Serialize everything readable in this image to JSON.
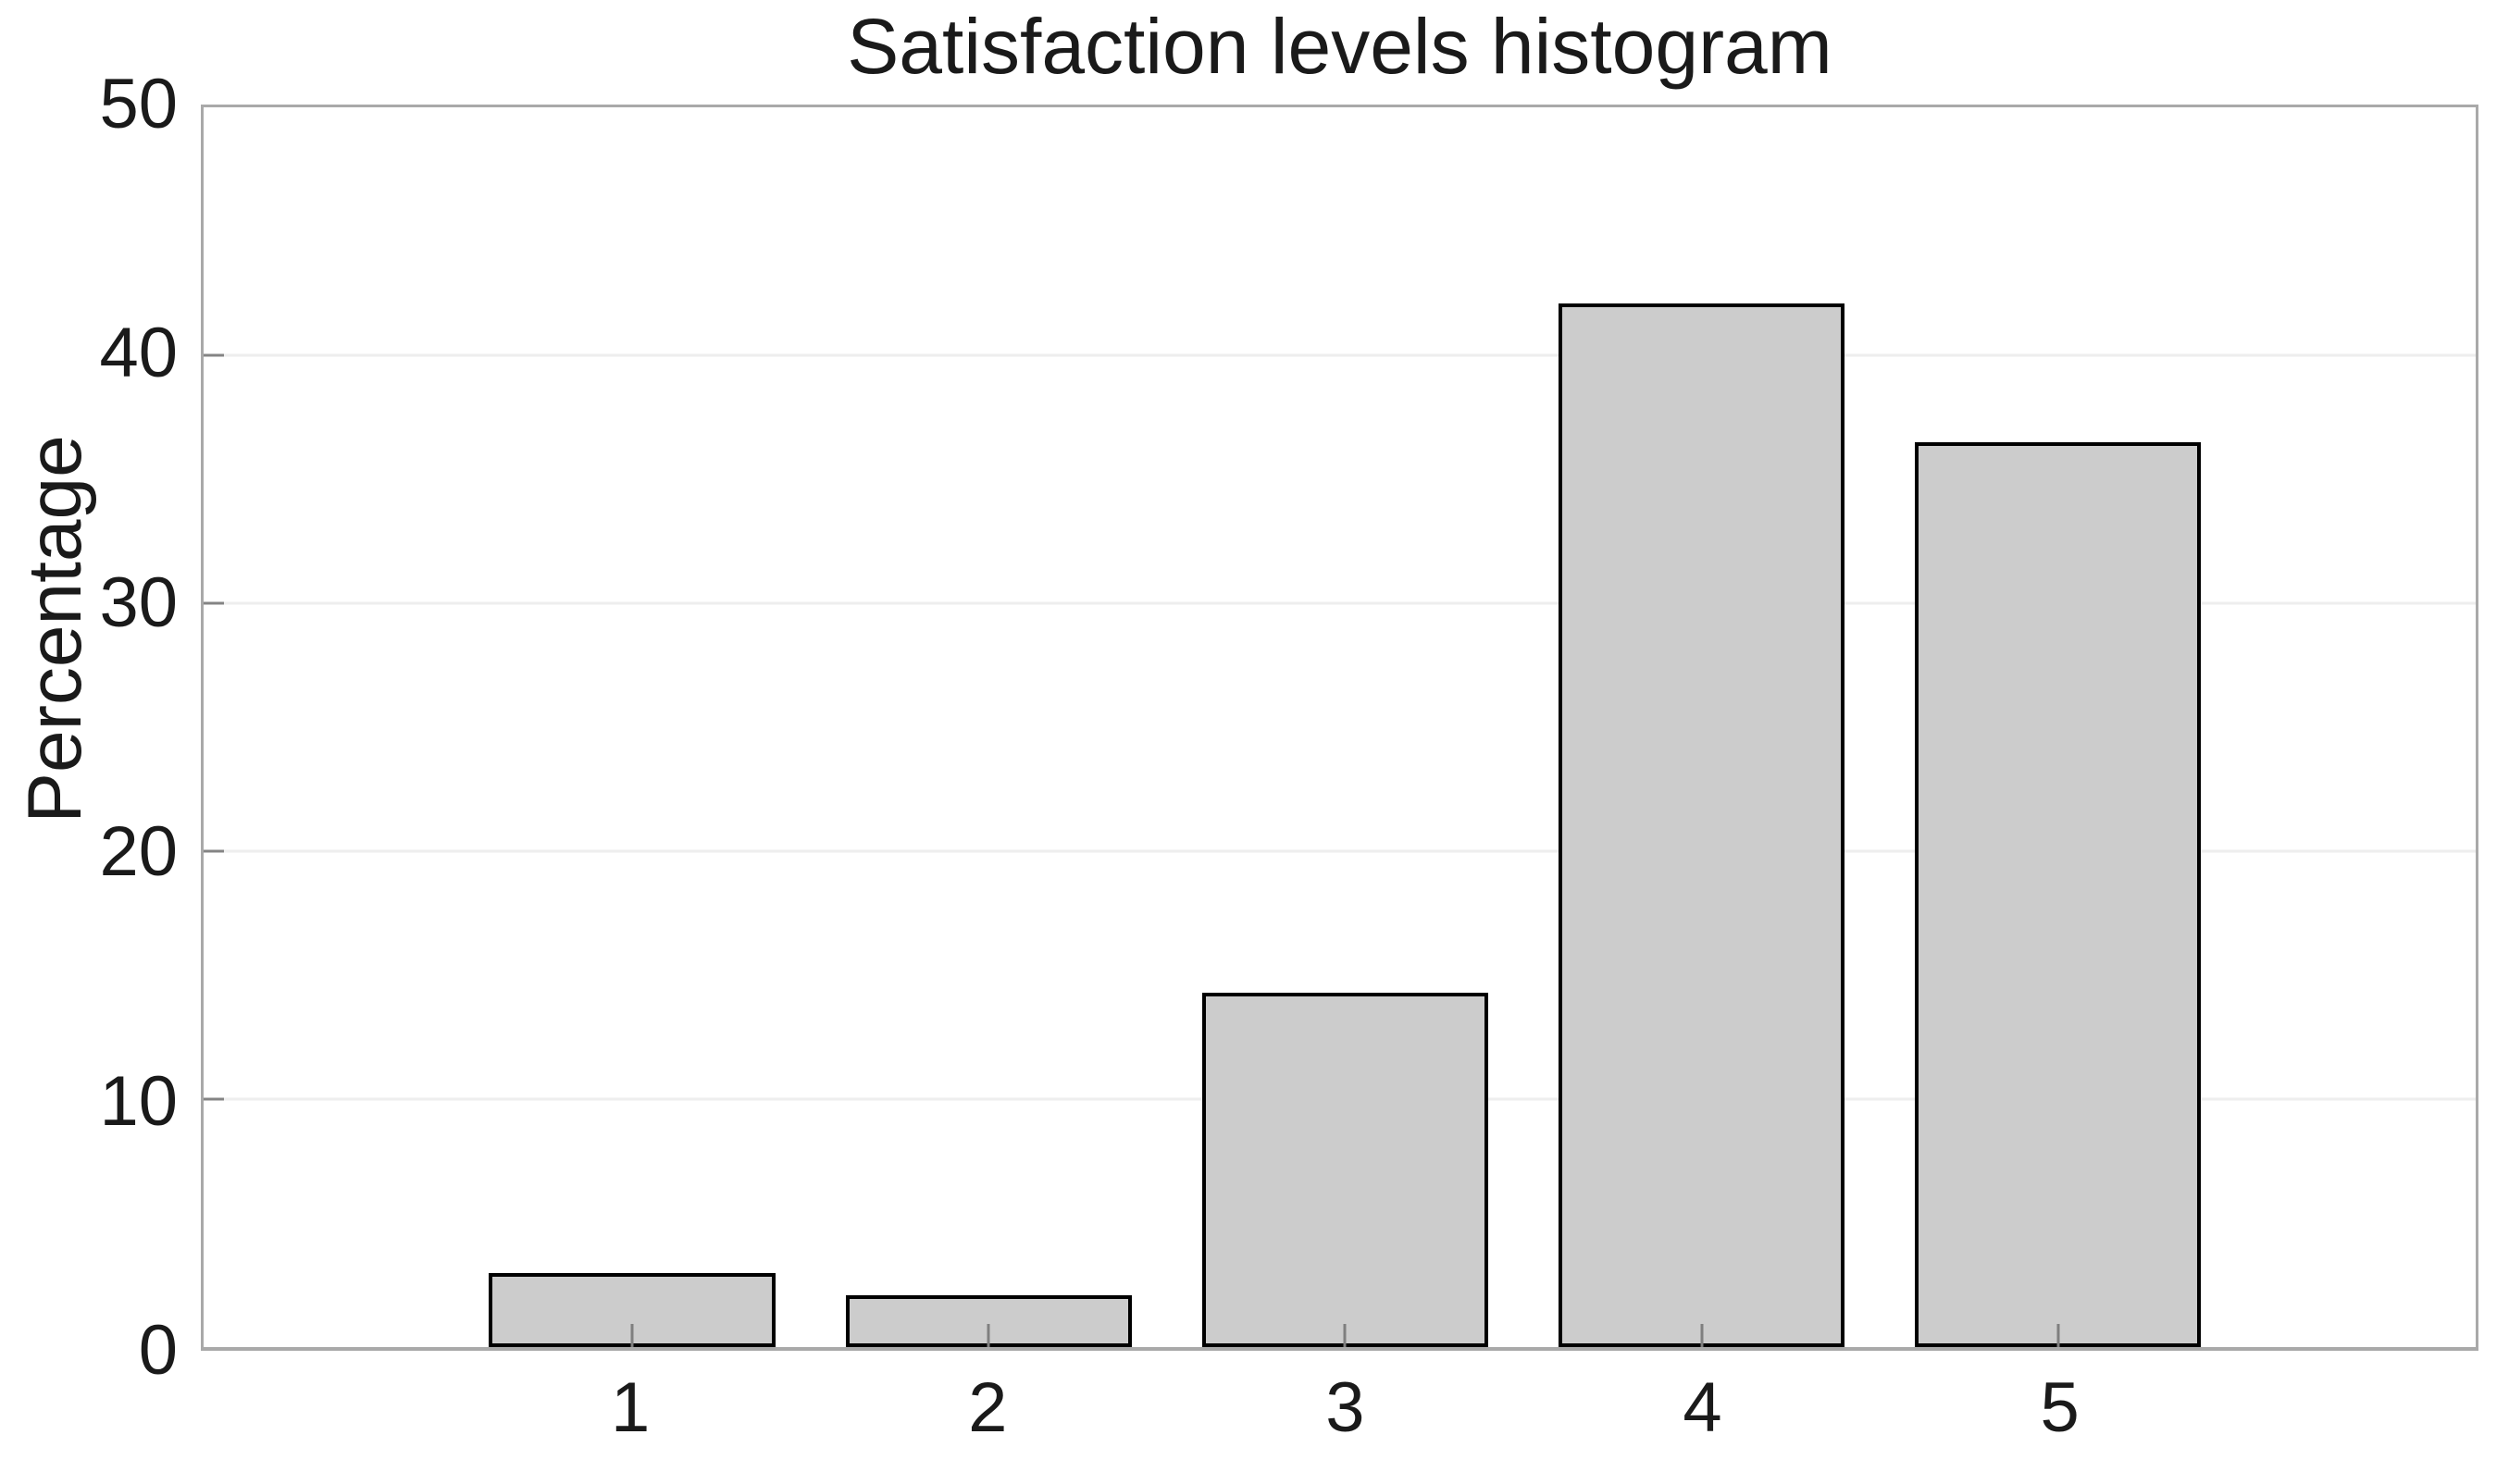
{
  "chart_data": {
    "type": "bar",
    "title": "Satisfaction levels histogram",
    "xlabel": "",
    "ylabel": "Percentage",
    "categories": [
      "1",
      "2",
      "3",
      "4",
      "5"
    ],
    "values": [
      3.0,
      2.1,
      14.3,
      42.1,
      36.5
    ],
    "ylim": [
      0,
      50
    ],
    "yticks": [
      0,
      10,
      20,
      30,
      40,
      50
    ],
    "grid": "horizontal faint gridlines at y ticks",
    "legend_position": "none",
    "colors": {
      "background": "#ffffff",
      "bar_fill": "#cccccc",
      "bar_edge": "#000000",
      "axis_frame": "#a9a9a9",
      "gridline": "#eeeeee",
      "tick_mark": "#7f7f7f",
      "text": "#1a1a1a"
    }
  }
}
